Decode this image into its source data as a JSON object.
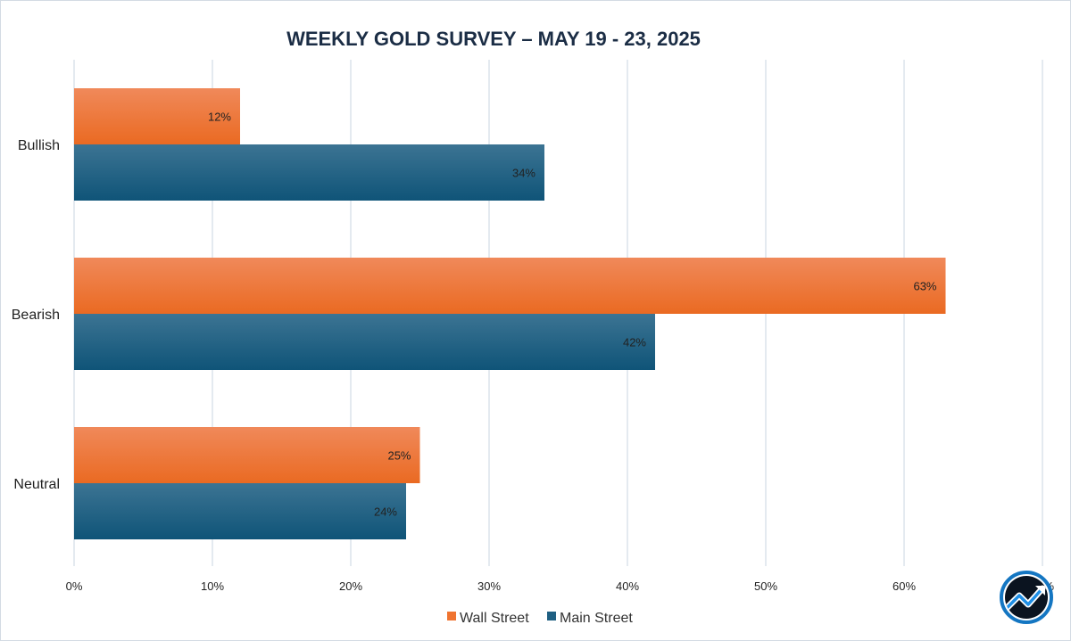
{
  "chart_data": {
    "type": "bar",
    "orientation": "horizontal",
    "title": "WEEKLY GOLD SURVEY – MAY 19 - 23, 2025",
    "categories": [
      "Bullish",
      "Bearish",
      "Neutral"
    ],
    "series": [
      {
        "name": "Wall Street",
        "values": [
          12,
          63,
          25
        ],
        "color": "#f07430"
      },
      {
        "name": "Main Street",
        "values": [
          34,
          42,
          24
        ],
        "color": "#1f5f82"
      }
    ],
    "data_labels": {
      "Wall Street": [
        "12%",
        "63%",
        "25%"
      ],
      "Main Street": [
        "34%",
        "42%",
        "24%"
      ]
    },
    "x_ticks": [
      "0%",
      "10%",
      "20%",
      "30%",
      "40%",
      "50%",
      "60%",
      "70%"
    ],
    "xlim": [
      0,
      70
    ],
    "grid": true,
    "legend_position": "bottom",
    "colors": {
      "gridline": "#dce4ec",
      "title": "#1b2d45"
    },
    "logo": {
      "name": "trend-arrow-logo-icon",
      "ring_color": "#1476c2"
    }
  }
}
